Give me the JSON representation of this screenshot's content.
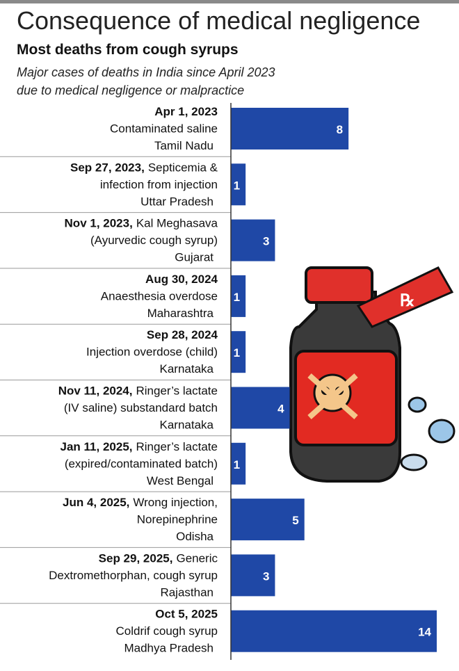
{
  "chart_data": {
    "type": "bar",
    "orientation": "horizontal",
    "title": "Consequence of medical negligence",
    "subtitle": "Most deaths from cough syrups",
    "description": [
      "Major cases of deaths in India since April 2023",
      "due to medical negligence or malpractice"
    ],
    "categories": [
      {
        "date": "Apr 1, 2023",
        "detail": [
          "Contaminated saline"
        ],
        "state": "Tamil Nadu"
      },
      {
        "date": "Sep 27, 2023,",
        "detail": [
          "Septicemia &",
          "infection from injection"
        ],
        "state": "Uttar Pradesh"
      },
      {
        "date": "Nov 1, 2023,",
        "detail": [
          "Kal Meghasava",
          "(Ayurvedic cough syrup)"
        ],
        "state": "Gujarat"
      },
      {
        "date": "Aug 30, 2024",
        "detail": [
          "Anaesthesia overdose"
        ],
        "state": "Maharashtra"
      },
      {
        "date": "Sep 28, 2024",
        "detail": [
          "Injection overdose (child)"
        ],
        "state": "Karnataka"
      },
      {
        "date": "Nov 11, 2024,",
        "detail": [
          "Ringer’s lactate",
          "(IV saline) substandard batch"
        ],
        "state": "Karnataka"
      },
      {
        "date": "Jan 11, 2025,",
        "detail": [
          "Ringer’s lactate",
          "(expired/contaminated batch)"
        ],
        "state": "West Bengal"
      },
      {
        "date": "Jun 4, 2025,",
        "detail": [
          "Wrong injection,",
          "Norepinephrine"
        ],
        "state": "Odisha"
      },
      {
        "date": "Sep 29, 2025,",
        "detail": [
          "Generic",
          "Dextromethorphan, cough syrup"
        ],
        "state": "Rajasthan"
      },
      {
        "date": "Oct 5, 2025",
        "detail": [
          "Coldrif cough syrup"
        ],
        "state": "Madhya Pradesh"
      }
    ],
    "values": [
      8,
      1,
      3,
      1,
      1,
      4,
      1,
      5,
      3,
      14
    ],
    "color": "#1f48a6"
  }
}
